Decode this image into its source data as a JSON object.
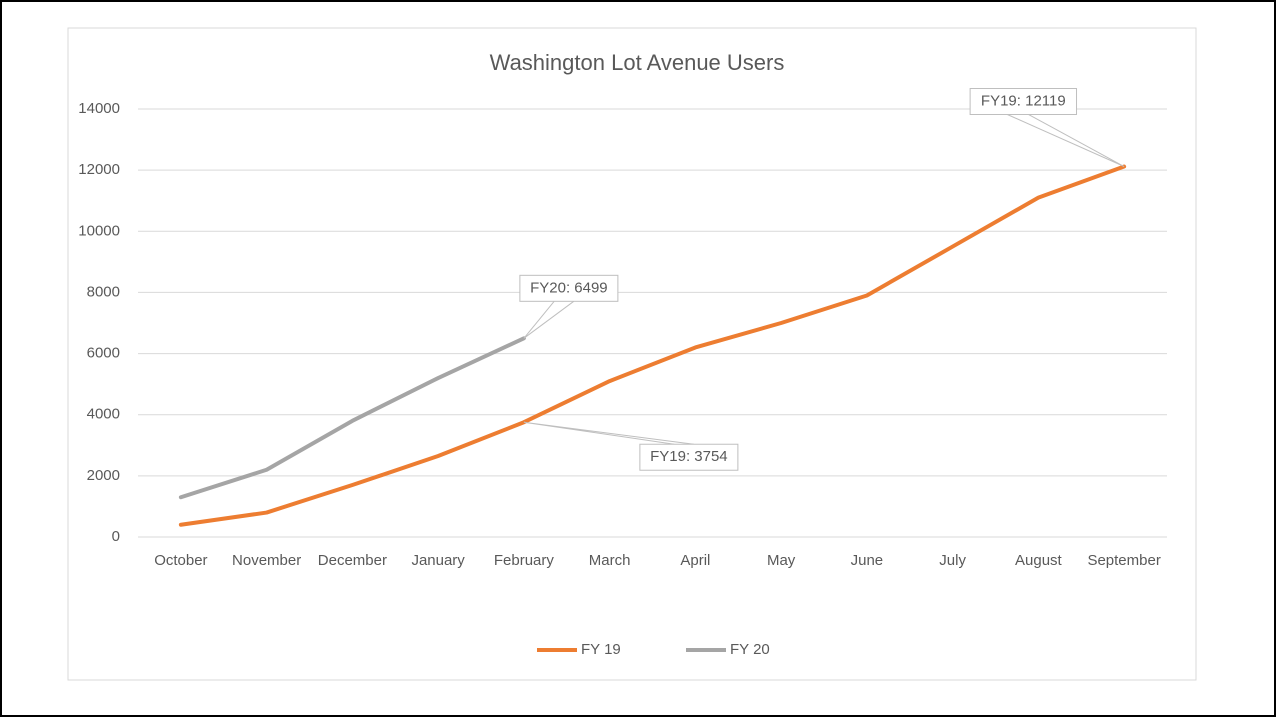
{
  "chart_data": {
    "type": "line",
    "title": "Washington Lot Avenue Users",
    "categories": [
      "October",
      "November",
      "December",
      "January",
      "February",
      "March",
      "April",
      "May",
      "June",
      "July",
      "August",
      "September"
    ],
    "series": [
      {
        "name": "FY 19",
        "color": "#ed7d31",
        "values": [
          400,
          800,
          1700,
          2650,
          3754,
          5100,
          6200,
          7000,
          7900,
          9500,
          11100,
          12119
        ],
        "value_labels": [
          null,
          null,
          null,
          null,
          "FY19: 3754",
          null,
          null,
          null,
          null,
          null,
          null,
          "FY19: 12119"
        ]
      },
      {
        "name": "FY 20",
        "color": "#a5a5a5",
        "values": [
          1300,
          2200,
          3800,
          5200,
          6499,
          null,
          null,
          null,
          null,
          null,
          null,
          null
        ],
        "value_labels": [
          null,
          null,
          null,
          null,
          "FY20: 6499",
          null,
          null,
          null,
          null,
          null,
          null,
          null
        ]
      }
    ],
    "ylim": [
      0,
      14000
    ],
    "yticks": [
      0,
      2000,
      4000,
      6000,
      8000,
      10000,
      12000,
      14000
    ],
    "grid": true,
    "legend": "bottom"
  }
}
